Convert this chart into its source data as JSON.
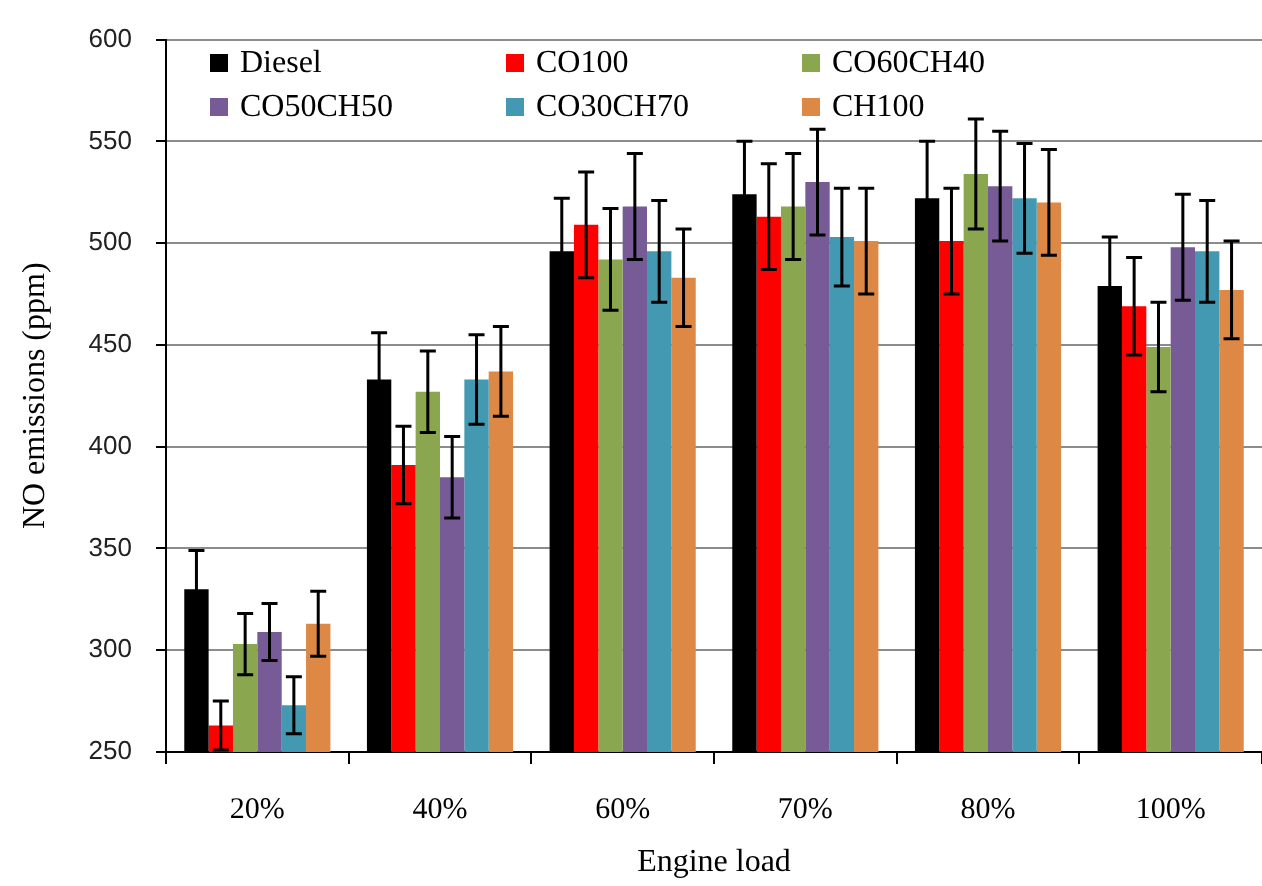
{
  "chart_data": {
    "type": "bar",
    "xlabel": "Engine load",
    "ylabel": "NO emissions (ppm)",
    "categories": [
      "20%",
      "40%",
      "60%",
      "70%",
      "80%",
      "100%"
    ],
    "series": [
      {
        "name": "Diesel",
        "color": "#000000",
        "values": [
          330,
          433,
          496,
          524,
          522,
          479
        ],
        "errors": [
          19,
          23,
          26,
          26,
          28,
          24
        ]
      },
      {
        "name": "CO100",
        "color": "#ff0000",
        "values": [
          263,
          391,
          509,
          513,
          501,
          469
        ],
        "errors": [
          12,
          19,
          26,
          26,
          26,
          24
        ]
      },
      {
        "name": "CO60CH40",
        "color": "#8aa64e",
        "values": [
          303,
          427,
          492,
          518,
          534,
          449
        ],
        "errors": [
          15,
          20,
          25,
          26,
          27,
          22
        ]
      },
      {
        "name": "CO50CH50",
        "color": "#775b96",
        "values": [
          309,
          385,
          518,
          530,
          528,
          498
        ],
        "errors": [
          14,
          20,
          26,
          26,
          27,
          26
        ]
      },
      {
        "name": "CO30CH70",
        "color": "#4299b1",
        "values": [
          273,
          433,
          496,
          503,
          522,
          496
        ],
        "errors": [
          14,
          22,
          25,
          24,
          27,
          25
        ]
      },
      {
        "name": "CH100",
        "color": "#dd8844",
        "values": [
          313,
          437,
          483,
          501,
          520,
          477
        ],
        "errors": [
          16,
          22,
          24,
          26,
          26,
          24
        ]
      }
    ],
    "ylim": [
      250,
      600
    ],
    "yticks": [
      250,
      300,
      350,
      400,
      450,
      500,
      550,
      600
    ],
    "grid": "y",
    "legend": "top left"
  }
}
